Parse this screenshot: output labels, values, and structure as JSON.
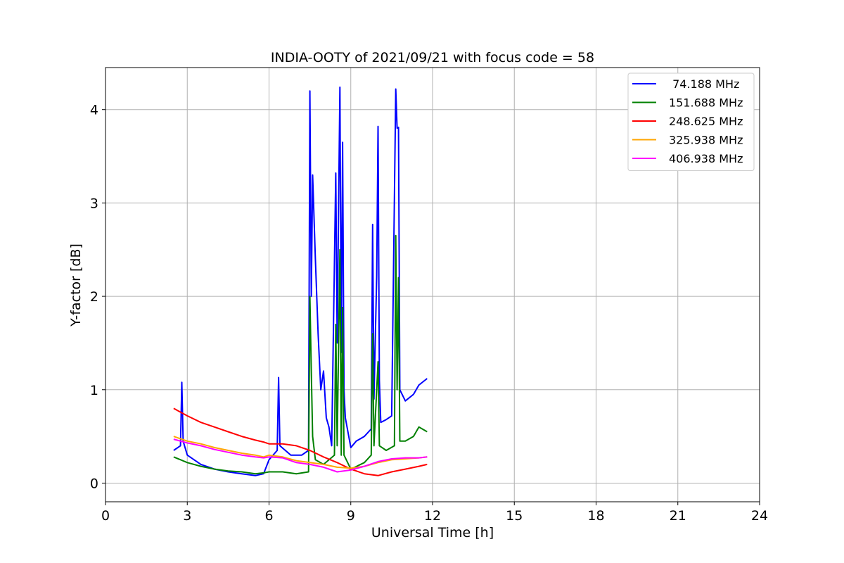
{
  "chart_data": {
    "type": "line",
    "title": "INDIA-OOTY of 2021/09/21 with focus code = 58",
    "xlabel": "Universal Time [h]",
    "ylabel": "Y-factor [dB]",
    "xlim": [
      0,
      24
    ],
    "ylim": [
      -0.2,
      4.45
    ],
    "xticks": [
      0,
      3,
      6,
      9,
      12,
      15,
      18,
      21,
      24
    ],
    "yticks": [
      0,
      1,
      2,
      3,
      4
    ],
    "grid": true,
    "legend_position": "top-right",
    "series": [
      {
        "name": " 74.188 MHz",
        "color": "#0000ff",
        "points": [
          [
            2.5,
            0.35
          ],
          [
            2.75,
            0.4
          ],
          [
            2.8,
            1.08
          ],
          [
            2.85,
            0.45
          ],
          [
            3.0,
            0.3
          ],
          [
            3.5,
            0.2
          ],
          [
            4.0,
            0.15
          ],
          [
            4.5,
            0.12
          ],
          [
            5.0,
            0.1
          ],
          [
            5.5,
            0.08
          ],
          [
            5.8,
            0.1
          ],
          [
            6.0,
            0.25
          ],
          [
            6.3,
            0.35
          ],
          [
            6.35,
            1.13
          ],
          [
            6.4,
            0.4
          ],
          [
            6.8,
            0.3
          ],
          [
            7.2,
            0.3
          ],
          [
            7.45,
            0.35
          ],
          [
            7.5,
            4.2
          ],
          [
            7.55,
            2.0
          ],
          [
            7.6,
            3.3
          ],
          [
            7.7,
            2.4
          ],
          [
            7.8,
            1.6
          ],
          [
            7.9,
            1.0
          ],
          [
            8.0,
            1.2
          ],
          [
            8.1,
            0.7
          ],
          [
            8.2,
            0.6
          ],
          [
            8.3,
            0.4
          ],
          [
            8.45,
            3.32
          ],
          [
            8.5,
            1.5
          ],
          [
            8.55,
            2.9
          ],
          [
            8.6,
            4.24
          ],
          [
            8.65,
            1.4
          ],
          [
            8.7,
            3.65
          ],
          [
            8.75,
            1.0
          ],
          [
            8.8,
            0.7
          ],
          [
            9.0,
            0.38
          ],
          [
            9.2,
            0.45
          ],
          [
            9.5,
            0.5
          ],
          [
            9.75,
            0.58
          ],
          [
            9.8,
            2.77
          ],
          [
            9.85,
            0.9
          ],
          [
            9.95,
            2.22
          ],
          [
            10.0,
            3.82
          ],
          [
            10.05,
            1.1
          ],
          [
            10.1,
            0.65
          ],
          [
            10.3,
            0.68
          ],
          [
            10.5,
            0.72
          ],
          [
            10.65,
            4.22
          ],
          [
            10.7,
            3.8
          ],
          [
            10.75,
            3.81
          ],
          [
            10.8,
            1.0
          ],
          [
            11.0,
            0.88
          ],
          [
            11.3,
            0.95
          ],
          [
            11.5,
            1.05
          ],
          [
            11.8,
            1.12
          ]
        ]
      },
      {
        "name": "151.688 MHz",
        "color": "#008000",
        "points": [
          [
            2.5,
            0.28
          ],
          [
            3.0,
            0.22
          ],
          [
            3.5,
            0.18
          ],
          [
            4.0,
            0.15
          ],
          [
            4.5,
            0.13
          ],
          [
            5.0,
            0.12
          ],
          [
            5.5,
            0.1
          ],
          [
            5.8,
            0.11
          ],
          [
            6.0,
            0.12
          ],
          [
            6.5,
            0.12
          ],
          [
            7.0,
            0.1
          ],
          [
            7.45,
            0.12
          ],
          [
            7.5,
            2.0
          ],
          [
            7.55,
            1.2
          ],
          [
            7.6,
            0.5
          ],
          [
            7.7,
            0.25
          ],
          [
            8.0,
            0.2
          ],
          [
            8.4,
            0.3
          ],
          [
            8.45,
            1.7
          ],
          [
            8.5,
            0.4
          ],
          [
            8.6,
            2.5
          ],
          [
            8.65,
            0.3
          ],
          [
            8.7,
            1.88
          ],
          [
            8.75,
            0.3
          ],
          [
            9.0,
            0.15
          ],
          [
            9.5,
            0.22
          ],
          [
            9.75,
            0.3
          ],
          [
            9.8,
            1.6
          ],
          [
            9.85,
            0.4
          ],
          [
            10.0,
            1.3
          ],
          [
            10.05,
            0.4
          ],
          [
            10.3,
            0.35
          ],
          [
            10.6,
            0.4
          ],
          [
            10.65,
            2.65
          ],
          [
            10.7,
            1.0
          ],
          [
            10.75,
            2.2
          ],
          [
            10.8,
            0.45
          ],
          [
            11.0,
            0.45
          ],
          [
            11.3,
            0.5
          ],
          [
            11.5,
            0.6
          ],
          [
            11.8,
            0.55
          ]
        ]
      },
      {
        "name": "248.625 MHz",
        "color": "#ff0000",
        "points": [
          [
            2.5,
            0.8
          ],
          [
            3.0,
            0.72
          ],
          [
            3.5,
            0.65
          ],
          [
            4.0,
            0.6
          ],
          [
            4.5,
            0.55
          ],
          [
            5.0,
            0.5
          ],
          [
            5.5,
            0.46
          ],
          [
            5.8,
            0.44
          ],
          [
            6.0,
            0.42
          ],
          [
            6.5,
            0.42
          ],
          [
            7.0,
            0.4
          ],
          [
            7.5,
            0.35
          ],
          [
            8.0,
            0.28
          ],
          [
            8.5,
            0.22
          ],
          [
            9.0,
            0.15
          ],
          [
            9.5,
            0.1
          ],
          [
            10.0,
            0.08
          ],
          [
            10.5,
            0.12
          ],
          [
            11.0,
            0.15
          ],
          [
            11.5,
            0.18
          ],
          [
            11.8,
            0.2
          ]
        ]
      },
      {
        "name": "325.938 MHz",
        "color": "#ffa500",
        "points": [
          [
            2.5,
            0.5
          ],
          [
            3.0,
            0.45
          ],
          [
            3.5,
            0.42
          ],
          [
            4.0,
            0.38
          ],
          [
            4.5,
            0.35
          ],
          [
            5.0,
            0.32
          ],
          [
            5.5,
            0.3
          ],
          [
            5.8,
            0.28
          ],
          [
            6.0,
            0.3
          ],
          [
            6.5,
            0.28
          ],
          [
            7.0,
            0.24
          ],
          [
            7.5,
            0.22
          ],
          [
            8.0,
            0.2
          ],
          [
            8.5,
            0.17
          ],
          [
            9.0,
            0.16
          ],
          [
            9.5,
            0.18
          ],
          [
            10.0,
            0.22
          ],
          [
            10.5,
            0.25
          ],
          [
            11.0,
            0.26
          ],
          [
            11.5,
            0.27
          ],
          [
            11.8,
            0.28
          ]
        ]
      },
      {
        "name": "406.938 MHz",
        "color": "#ff00ff",
        "points": [
          [
            2.5,
            0.47
          ],
          [
            3.0,
            0.43
          ],
          [
            3.5,
            0.4
          ],
          [
            4.0,
            0.36
          ],
          [
            4.5,
            0.33
          ],
          [
            5.0,
            0.3
          ],
          [
            5.5,
            0.28
          ],
          [
            5.8,
            0.27
          ],
          [
            6.0,
            0.28
          ],
          [
            6.5,
            0.27
          ],
          [
            7.0,
            0.22
          ],
          [
            7.5,
            0.2
          ],
          [
            8.0,
            0.17
          ],
          [
            8.5,
            0.12
          ],
          [
            9.0,
            0.14
          ],
          [
            9.5,
            0.18
          ],
          [
            10.0,
            0.23
          ],
          [
            10.5,
            0.26
          ],
          [
            11.0,
            0.27
          ],
          [
            11.5,
            0.27
          ],
          [
            11.8,
            0.28
          ]
        ]
      }
    ]
  }
}
